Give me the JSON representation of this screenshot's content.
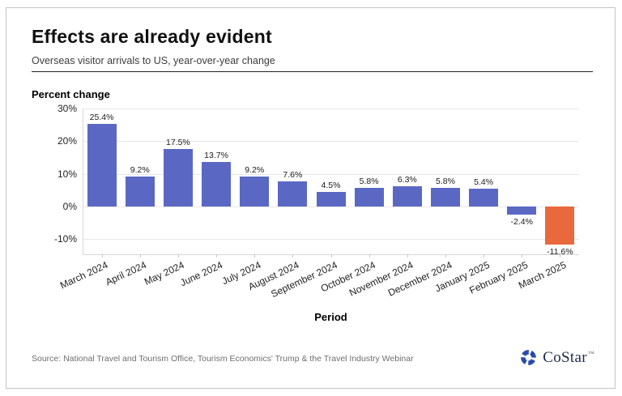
{
  "header": {
    "title": "Effects are already evident",
    "subtitle": "Overseas visitor arrivals to US, year-over-year change"
  },
  "chart_data": {
    "type": "bar",
    "title": "Effects are already evident",
    "subtitle": "Overseas visitor arrivals to US, year-over-year change",
    "ylabel": "Percent change",
    "xlabel": "Period",
    "categories": [
      "March 2024",
      "April 2024",
      "May 2024",
      "June 2024",
      "July 2024",
      "August 2024",
      "September 2024",
      "October 2024",
      "November 2024",
      "December 2024",
      "January 2025",
      "February 2025",
      "March 2025"
    ],
    "values": [
      25.4,
      9.2,
      17.5,
      13.7,
      9.2,
      7.6,
      4.5,
      5.8,
      6.3,
      5.8,
      5.4,
      -2.4,
      -11.6
    ],
    "value_labels": [
      "25.4%",
      "9.2%",
      "17.5%",
      "13.7%",
      "9.2%",
      "7.6%",
      "4.5%",
      "5.8%",
      "6.3%",
      "5.8%",
      "5.4%",
      "-2.4%",
      "-11.6%"
    ],
    "bar_colors": [
      "#5a68c4",
      "#5a68c4",
      "#5a68c4",
      "#5a68c4",
      "#5a68c4",
      "#5a68c4",
      "#5a68c4",
      "#5a68c4",
      "#5a68c4",
      "#5a68c4",
      "#5a68c4",
      "#5a68c4",
      "#e8693c"
    ],
    "ylim": [
      -14.6,
      30
    ],
    "yticks": [
      30,
      20,
      10,
      0,
      -10
    ],
    "ytick_labels": [
      "30%",
      "20%",
      "10%",
      "0%",
      "-10%"
    ],
    "grid": "horizontal",
    "legend": "none"
  },
  "footer": {
    "source": "Source: National Travel and Tourism Office, Tourism Economics' Trump & the Travel Industry Webinar",
    "logo_text": "CoStar",
    "logo_tm": "™",
    "logo_icon_color": "#2b4ba9"
  }
}
